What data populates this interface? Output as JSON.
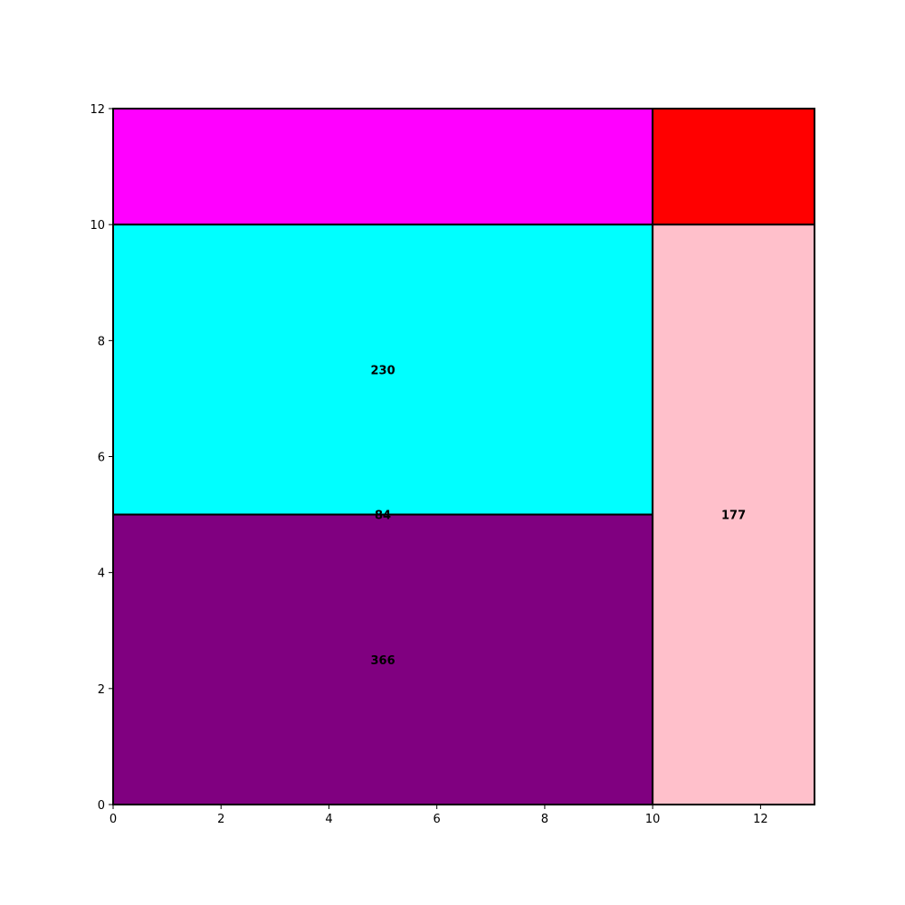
{
  "chart_data": {
    "type": "treemap",
    "title": "",
    "xlabel": "",
    "ylabel": "",
    "xlim": [
      0,
      13
    ],
    "ylim": [
      0,
      12
    ],
    "xticks": [
      0,
      2,
      4,
      6,
      8,
      10,
      12
    ],
    "yticks": [
      0,
      2,
      4,
      6,
      8,
      10,
      12
    ],
    "grid": false,
    "rects": [
      {
        "x0": 0,
        "y0": 10,
        "x1": 10,
        "y1": 12,
        "color": "#ff00ff",
        "label": ""
      },
      {
        "x0": 10,
        "y0": 10,
        "x1": 13,
        "y1": 12,
        "color": "#ff0000",
        "label": ""
      },
      {
        "x0": 0,
        "y0": 5,
        "x1": 10,
        "y1": 10,
        "color": "#00ffff",
        "label": "230"
      },
      {
        "x0": 0,
        "y0": 0,
        "x1": 10,
        "y1": 5,
        "color": "#800080",
        "label": "366"
      },
      {
        "x0": 10,
        "y0": 0,
        "x1": 13,
        "y1": 10,
        "color": "#ffc0cb",
        "label": "177"
      }
    ],
    "annotations": [
      {
        "x": 5,
        "y": 5,
        "text": "84"
      }
    ]
  }
}
